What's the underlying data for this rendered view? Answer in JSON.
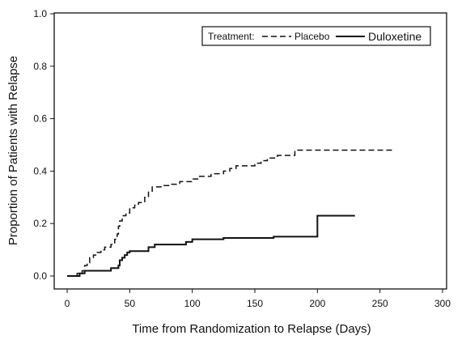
{
  "chart_data": {
    "type": "line",
    "step": true,
    "xlabel": "Time from Randomization to Relapse (Days)",
    "ylabel": "Proportion of Patients with Relapse",
    "xlim": [
      0,
      300
    ],
    "ylim": [
      0,
      1.0
    ],
    "x_ticks": [
      0,
      50,
      100,
      150,
      200,
      250,
      300
    ],
    "y_ticks": [
      0.0,
      0.2,
      0.4,
      0.6,
      0.8,
      1.0
    ],
    "x_tick_labels": [
      "0",
      "50",
      "100",
      "150",
      "200",
      "250",
      "300"
    ],
    "y_tick_labels": [
      "0.0",
      "0.2",
      "0.4",
      "0.6",
      "0.8",
      "1.0"
    ],
    "grid": false,
    "legend": {
      "placement": "top-right",
      "title": "Treatment:",
      "entries": [
        "Placebo",
        "Duloxetine"
      ]
    },
    "series": [
      {
        "name": "Placebo",
        "style": "dashed",
        "color": "#111111",
        "points": [
          [
            0,
            0
          ],
          [
            8,
            0
          ],
          [
            8,
            0.01
          ],
          [
            12,
            0.01
          ],
          [
            12,
            0.02
          ],
          [
            14,
            0.02
          ],
          [
            14,
            0.04
          ],
          [
            16,
            0.04
          ],
          [
            16,
            0.05
          ],
          [
            18,
            0.05
          ],
          [
            18,
            0.07
          ],
          [
            21,
            0.07
          ],
          [
            21,
            0.08
          ],
          [
            24,
            0.08
          ],
          [
            24,
            0.09
          ],
          [
            27,
            0.09
          ],
          [
            27,
            0.1
          ],
          [
            30,
            0.1
          ],
          [
            30,
            0.11
          ],
          [
            35,
            0.11
          ],
          [
            35,
            0.12
          ],
          [
            38,
            0.12
          ],
          [
            38,
            0.14
          ],
          [
            40,
            0.14
          ],
          [
            40,
            0.16
          ],
          [
            41,
            0.16
          ],
          [
            41,
            0.19
          ],
          [
            42,
            0.19
          ],
          [
            42,
            0.21
          ],
          [
            44,
            0.21
          ],
          [
            44,
            0.23
          ],
          [
            47,
            0.23
          ],
          [
            47,
            0.24
          ],
          [
            50,
            0.24
          ],
          [
            50,
            0.26
          ],
          [
            54,
            0.26
          ],
          [
            54,
            0.27
          ],
          [
            57,
            0.27
          ],
          [
            57,
            0.28
          ],
          [
            62,
            0.28
          ],
          [
            62,
            0.3
          ],
          [
            65,
            0.3
          ],
          [
            65,
            0.32
          ],
          [
            68,
            0.32
          ],
          [
            68,
            0.34
          ],
          [
            75,
            0.34
          ],
          [
            75,
            0.345
          ],
          [
            82,
            0.345
          ],
          [
            82,
            0.35
          ],
          [
            90,
            0.35
          ],
          [
            90,
            0.36
          ],
          [
            100,
            0.36
          ],
          [
            100,
            0.37
          ],
          [
            105,
            0.37
          ],
          [
            105,
            0.38
          ],
          [
            115,
            0.38
          ],
          [
            115,
            0.39
          ],
          [
            125,
            0.39
          ],
          [
            125,
            0.4
          ],
          [
            130,
            0.4
          ],
          [
            130,
            0.41
          ],
          [
            135,
            0.41
          ],
          [
            135,
            0.42
          ],
          [
            150,
            0.42
          ],
          [
            150,
            0.43
          ],
          [
            155,
            0.43
          ],
          [
            155,
            0.44
          ],
          [
            160,
            0.44
          ],
          [
            160,
            0.45
          ],
          [
            168,
            0.45
          ],
          [
            168,
            0.46
          ],
          [
            182,
            0.46
          ],
          [
            182,
            0.48
          ],
          [
            260,
            0.48
          ]
        ]
      },
      {
        "name": "Duloxetine",
        "style": "solid",
        "color": "#111111",
        "points": [
          [
            0,
            0
          ],
          [
            10,
            0
          ],
          [
            10,
            0.01
          ],
          [
            14,
            0.01
          ],
          [
            14,
            0.02
          ],
          [
            35,
            0.02
          ],
          [
            35,
            0.03
          ],
          [
            41,
            0.03
          ],
          [
            41,
            0.04
          ],
          [
            42,
            0.04
          ],
          [
            42,
            0.06
          ],
          [
            44,
            0.06
          ],
          [
            44,
            0.07
          ],
          [
            46,
            0.07
          ],
          [
            46,
            0.08
          ],
          [
            48,
            0.08
          ],
          [
            48,
            0.09
          ],
          [
            50,
            0.09
          ],
          [
            50,
            0.095
          ],
          [
            65,
            0.095
          ],
          [
            65,
            0.11
          ],
          [
            70,
            0.11
          ],
          [
            70,
            0.12
          ],
          [
            95,
            0.12
          ],
          [
            95,
            0.13
          ],
          [
            100,
            0.13
          ],
          [
            100,
            0.14
          ],
          [
            125,
            0.14
          ],
          [
            125,
            0.145
          ],
          [
            165,
            0.145
          ],
          [
            165,
            0.15
          ],
          [
            200,
            0.15
          ],
          [
            200,
            0.23
          ],
          [
            230,
            0.23
          ]
        ]
      }
    ]
  }
}
